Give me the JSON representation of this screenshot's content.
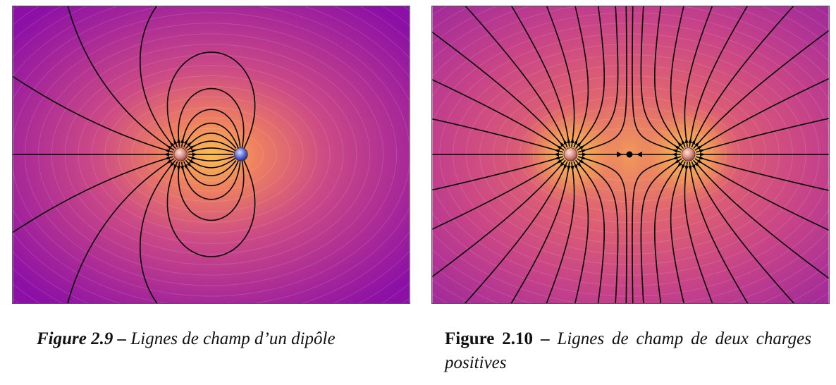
{
  "figures": [
    {
      "id": "2.9",
      "number_label": "Figure 2.9 –",
      "caption": "Lignes de champ d’un dipôle",
      "charges": [
        {
          "sign": "+",
          "x": -1,
          "q": 1,
          "color": "#e8a0a0"
        },
        {
          "sign": "-",
          "x": 1,
          "q": -1,
          "color": "#6a78d8"
        }
      ]
    },
    {
      "id": "2.10",
      "number_label": "Figure 2.10 –",
      "caption": "Lignes de champ de deux charges positives",
      "charges": [
        {
          "sign": "+",
          "x": -1,
          "q": 1,
          "color": "#e8a0a0"
        },
        {
          "sign": "+",
          "x": 1,
          "q": 1,
          "color": "#e8a0a0"
        }
      ]
    }
  ],
  "colors": {
    "background_far": "#8e10a8",
    "background_mid": "#d8507a",
    "background_near": "#f7b64a",
    "field_line": "#000000"
  }
}
